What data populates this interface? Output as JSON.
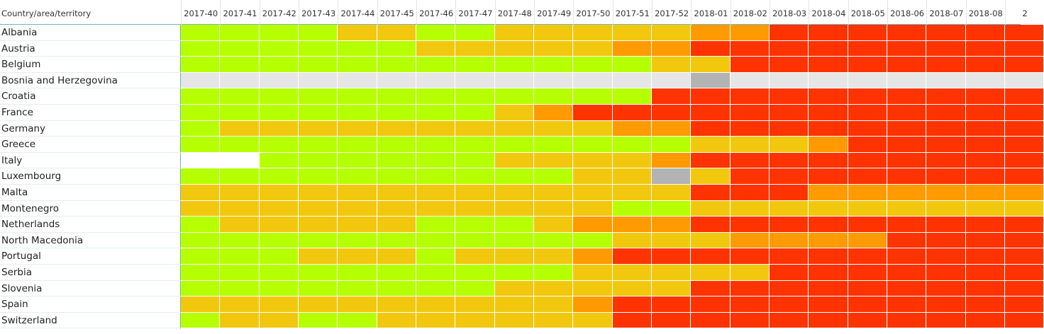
{
  "header": {
    "first": "Country/area/territory",
    "columns": [
      "2017-40",
      "2017-41",
      "2017-42",
      "2017-43",
      "2017-44",
      "2017-45",
      "2017-46",
      "2017-47",
      "2017-48",
      "2017-49",
      "2017-50",
      "2017-51",
      "2017-52",
      "2018-01",
      "2018-02",
      "2018-03",
      "2018-04",
      "2018-05",
      "2018-06",
      "2018-07",
      "2018-08",
      "2"
    ]
  },
  "rows": [
    {
      "label": "Albania",
      "cells": [
        "#b6ff00",
        "#b6ff00",
        "#b6ff00",
        "#b6ff00",
        "#f2c80f",
        "#f2c80f",
        "#b6ff00",
        "#b6ff00",
        "#f2c80f",
        "#f2c80f",
        "#f2c80f",
        "#f2c80f",
        "#f2c80f",
        "#ff9a00",
        "#ff9a00",
        "#ff3300",
        "#ff3300",
        "#ff3300",
        "#ff3300",
        "#ff3300",
        "#ff3300",
        "#ff3300"
      ]
    },
    {
      "label": "Austria",
      "cells": [
        "#b6ff00",
        "#b6ff00",
        "#b6ff00",
        "#b6ff00",
        "#b6ff00",
        "#b6ff00",
        "#f2c80f",
        "#f2c80f",
        "#f2c80f",
        "#f2c80f",
        "#f2c80f",
        "#ff9a00",
        "#ff9a00",
        "#ff3300",
        "#ff3300",
        "#ff3300",
        "#ff3300",
        "#ff3300",
        "#ff3300",
        "#ff3300",
        "#ff3300",
        "#ff3300"
      ]
    },
    {
      "label": "Belgium",
      "cells": [
        "#b6ff00",
        "#b6ff00",
        "#b6ff00",
        "#b6ff00",
        "#b6ff00",
        "#b6ff00",
        "#b6ff00",
        "#b6ff00",
        "#b6ff00",
        "#b6ff00",
        "#b6ff00",
        "#b6ff00",
        "#f2c80f",
        "#f2c80f",
        "#ff3300",
        "#ff3300",
        "#ff3300",
        "#ff3300",
        "#ff3300",
        "#ff3300",
        "#ff3300",
        "#ff3300"
      ]
    },
    {
      "label": "Bosnia and Herzegovina",
      "cells": [
        "#e6e6e6",
        "#e6e6e6",
        "#e6e6e6",
        "#e6e6e6",
        "#e6e6e6",
        "#e6e6e6",
        "#e6e6e6",
        "#e6e6e6",
        "#e6e6e6",
        "#e6e6e6",
        "#e6e6e6",
        "#e6e6e6",
        "#e6e6e6",
        "#b3b3b3",
        "#e6e6e6",
        "#e6e6e6",
        "#e6e6e6",
        "#e6e6e6",
        "#e6e6e6",
        "#e6e6e6",
        "#e6e6e6",
        "#e6e6e6"
      ]
    },
    {
      "label": "Croatia",
      "cells": [
        "#b6ff00",
        "#b6ff00",
        "#b6ff00",
        "#b6ff00",
        "#b6ff00",
        "#b6ff00",
        "#b6ff00",
        "#b6ff00",
        "#b6ff00",
        "#b6ff00",
        "#b6ff00",
        "#b6ff00",
        "#ff3300",
        "#ff3300",
        "#ff3300",
        "#ff3300",
        "#ff3300",
        "#ff3300",
        "#ff3300",
        "#ff3300",
        "#ff3300",
        "#ff3300"
      ]
    },
    {
      "label": "France",
      "cells": [
        "#b6ff00",
        "#b6ff00",
        "#b6ff00",
        "#b6ff00",
        "#b6ff00",
        "#b6ff00",
        "#b6ff00",
        "#b6ff00",
        "#f2c80f",
        "#ff9a00",
        "#ff3300",
        "#ff3300",
        "#ff3300",
        "#ff3300",
        "#ff3300",
        "#ff3300",
        "#ff3300",
        "#ff3300",
        "#ff3300",
        "#ff3300",
        "#ff3300",
        "#ff3300"
      ]
    },
    {
      "label": "Germany",
      "cells": [
        "#b6ff00",
        "#f2c80f",
        "#f2c80f",
        "#f2c80f",
        "#f2c80f",
        "#f2c80f",
        "#f2c80f",
        "#f2c80f",
        "#f2c80f",
        "#f2c80f",
        "#f2c80f",
        "#ff9a00",
        "#ff9a00",
        "#ff3300",
        "#ff3300",
        "#ff3300",
        "#ff3300",
        "#ff3300",
        "#ff3300",
        "#ff3300",
        "#ff3300",
        "#ff3300"
      ]
    },
    {
      "label": "Greece",
      "cells": [
        "#b6ff00",
        "#b6ff00",
        "#b6ff00",
        "#b6ff00",
        "#b6ff00",
        "#b6ff00",
        "#b6ff00",
        "#b6ff00",
        "#b6ff00",
        "#b6ff00",
        "#b6ff00",
        "#b6ff00",
        "#b6ff00",
        "#f2c80f",
        "#f2c80f",
        "#f2c80f",
        "#ff9a00",
        "#ff3300",
        "#ff3300",
        "#ff3300",
        "#ff3300",
        "#ff3300"
      ]
    },
    {
      "label": "Italy",
      "cells": [
        "#ffffff",
        "#ffffff",
        "#b6ff00",
        "#b6ff00",
        "#b6ff00",
        "#b6ff00",
        "#b6ff00",
        "#b6ff00",
        "#f2c80f",
        "#f2c80f",
        "#f2c80f",
        "#f2c80f",
        "#ff9a00",
        "#ff3300",
        "#ff3300",
        "#ff3300",
        "#ff3300",
        "#ff3300",
        "#ff3300",
        "#ff3300",
        "#ff3300",
        "#ff3300"
      ]
    },
    {
      "label": "Luxembourg",
      "cells": [
        "#b6ff00",
        "#b6ff00",
        "#b6ff00",
        "#b6ff00",
        "#b6ff00",
        "#b6ff00",
        "#b6ff00",
        "#b6ff00",
        "#b6ff00",
        "#b6ff00",
        "#f2c80f",
        "#f2c80f",
        "#b3b3b3",
        "#f2c80f",
        "#ff3300",
        "#ff3300",
        "#ff3300",
        "#ff3300",
        "#ff3300",
        "#ff3300",
        "#ff3300",
        "#ff3300"
      ]
    },
    {
      "label": "Malta",
      "cells": [
        "#f2c80f",
        "#f2c80f",
        "#f2c80f",
        "#f2c80f",
        "#f2c80f",
        "#f2c80f",
        "#f2c80f",
        "#f2c80f",
        "#f2c80f",
        "#f2c80f",
        "#f2c80f",
        "#f2c80f",
        "#f2c80f",
        "#ff3300",
        "#ff3300",
        "#ff3300",
        "#ff9a00",
        "#ff9a00",
        "#ff9a00",
        "#ff9a00",
        "#ff9a00",
        "#ff9a00"
      ]
    },
    {
      "label": "Montenegro",
      "cells": [
        "#f2c80f",
        "#f2c80f",
        "#f2c80f",
        "#f2c80f",
        "#f2c80f",
        "#f2c80f",
        "#f2c80f",
        "#f2c80f",
        "#f2c80f",
        "#f2c80f",
        "#f2c80f",
        "#b6ff00",
        "#b6ff00",
        "#f2c80f",
        "#f2c80f",
        "#f2c80f",
        "#f2c80f",
        "#f2c80f",
        "#f2c80f",
        "#f2c80f",
        "#f2c80f",
        "#f2c80f"
      ]
    },
    {
      "label": "Netherlands",
      "cells": [
        "#b6ff00",
        "#f2c80f",
        "#f2c80f",
        "#f2c80f",
        "#f2c80f",
        "#f2c80f",
        "#b6ff00",
        "#b6ff00",
        "#b6ff00",
        "#f2c80f",
        "#ff9a00",
        "#ff9a00",
        "#ff9a00",
        "#ff3300",
        "#ff3300",
        "#ff3300",
        "#ff3300",
        "#ff3300",
        "#ff3300",
        "#ff3300",
        "#ff3300",
        "#ff3300"
      ]
    },
    {
      "label": "North Macedonia",
      "cells": [
        "#b6ff00",
        "#b6ff00",
        "#b6ff00",
        "#b6ff00",
        "#b6ff00",
        "#b6ff00",
        "#b6ff00",
        "#b6ff00",
        "#b6ff00",
        "#b6ff00",
        "#b6ff00",
        "#f2c80f",
        "#f2c80f",
        "#f2c80f",
        "#ff9a00",
        "#ff9a00",
        "#ff9a00",
        "#ff9a00",
        "#ff3300",
        "#ff3300",
        "#ff3300",
        "#ff3300"
      ]
    },
    {
      "label": "Portugal",
      "cells": [
        "#b6ff00",
        "#b6ff00",
        "#b6ff00",
        "#f2c80f",
        "#f2c80f",
        "#f2c80f",
        "#b6ff00",
        "#f2c80f",
        "#f2c80f",
        "#f2c80f",
        "#ff9a00",
        "#ff3300",
        "#ff3300",
        "#ff3300",
        "#ff3300",
        "#ff3300",
        "#ff3300",
        "#ff3300",
        "#ff3300",
        "#ff3300",
        "#ff3300",
        "#ff3300"
      ]
    },
    {
      "label": "Serbia",
      "cells": [
        "#b6ff00",
        "#b6ff00",
        "#b6ff00",
        "#b6ff00",
        "#b6ff00",
        "#b6ff00",
        "#b6ff00",
        "#b6ff00",
        "#b6ff00",
        "#b6ff00",
        "#f2c80f",
        "#f2c80f",
        "#f2c80f",
        "#f2c80f",
        "#f2c80f",
        "#ff3300",
        "#ff3300",
        "#ff3300",
        "#ff3300",
        "#ff3300",
        "#ff3300",
        "#ff3300"
      ]
    },
    {
      "label": "Slovenia",
      "cells": [
        "#b6ff00",
        "#b6ff00",
        "#b6ff00",
        "#b6ff00",
        "#b6ff00",
        "#b6ff00",
        "#b6ff00",
        "#b6ff00",
        "#f2c80f",
        "#f2c80f",
        "#f2c80f",
        "#f2c80f",
        "#f2c80f",
        "#ff3300",
        "#ff3300",
        "#ff3300",
        "#ff3300",
        "#ff3300",
        "#ff3300",
        "#ff3300",
        "#ff3300",
        "#ff3300"
      ]
    },
    {
      "label": "Spain",
      "cells": [
        "#f2c80f",
        "#f2c80f",
        "#f2c80f",
        "#f2c80f",
        "#f2c80f",
        "#f2c80f",
        "#f2c80f",
        "#f2c80f",
        "#f2c80f",
        "#f2c80f",
        "#ff9a00",
        "#ff3300",
        "#ff3300",
        "#ff3300",
        "#ff3300",
        "#ff3300",
        "#ff3300",
        "#ff3300",
        "#ff3300",
        "#ff3300",
        "#ff3300",
        "#ff3300"
      ]
    },
    {
      "label": "Switzerland",
      "cells": [
        "#b6ff00",
        "#f2c80f",
        "#f2c80f",
        "#b6ff00",
        "#b6ff00",
        "#f2c80f",
        "#f2c80f",
        "#f2c80f",
        "#f2c80f",
        "#f2c80f",
        "#f2c80f",
        "#ff3300",
        "#ff3300",
        "#ff3300",
        "#ff3300",
        "#ff3300",
        "#ff3300",
        "#ff3300",
        "#ff3300",
        "#ff3300",
        "#ff3300",
        "#ff3300"
      ]
    }
  ]
}
